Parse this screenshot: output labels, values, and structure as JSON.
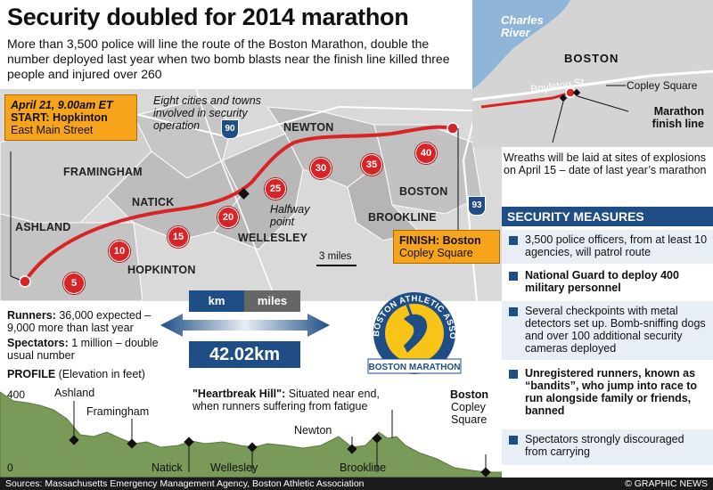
{
  "title": "Security doubled for 2014 marathon",
  "intro": "More than 3,500 police will line the route of the Boston Marathon, double the number deployed last year when two bomb blasts near the finish line killed three people and injured over 260",
  "start_callout": {
    "date": "April 21, 9.00am ET",
    "label": "START: Hopkinton",
    "sub": "East Main Street"
  },
  "finish_callout": {
    "label": "FINISH: Boston",
    "sub": "Copley Square"
  },
  "eight_cities_note": "Eight cities and towns involved in security operation",
  "halfway_note": "Halfway point",
  "scale_label": "3 miles",
  "towns": [
    "ASHLAND",
    "FRAMINGHAM",
    "NATICK",
    "HOPKINTON",
    "NEWTON",
    "WELLESLEY",
    "BOSTON",
    "BROOKLINE"
  ],
  "highways": [
    "90",
    "93"
  ],
  "mile_markers": [
    "5",
    "10",
    "15",
    "20",
    "25",
    "30",
    "35",
    "40"
  ],
  "inset": {
    "river": "Charles River",
    "city": "BOSTON",
    "street": "Boylston St.",
    "square": "Copley Square",
    "finish": "Marathon finish line",
    "wreaths": "Wreaths will be laid at sites of explosions on April 15 – date of last year’s marathon"
  },
  "distance": {
    "km_label": "km",
    "miles_label": "miles",
    "value": "42.02km"
  },
  "runners": {
    "label": "Runners:",
    "text": " 36,000 expected – 9,000 more than last year"
  },
  "spectators": {
    "label": "Spectators:",
    "text": " 1 million – double usual number"
  },
  "logo": {
    "ring": "BOSTON ATHLETIC ASSOCIATION",
    "banner": "BOSTON MARATHON"
  },
  "profile": {
    "label": "PROFILE",
    "unit": " (Elevation in feet)",
    "y_top": "400",
    "y_bottom": "0",
    "places": [
      "Ashland",
      "Framingham",
      "Natick",
      "Wellesley",
      "Newton",
      "Brookline",
      "Boston",
      "Copley",
      "Square"
    ],
    "heartbreak_title": "\"Heartbreak Hill\":",
    "heartbreak_text": " Situated near end, when runners suffering from fatigue"
  },
  "security": {
    "title": "SECURITY MEASURES",
    "items": [
      "3,500 police officers, from at least 10 agencies, will patrol route",
      "National Guard to deploy 400 military personnel",
      "Several checkpoints with metal detectors set up. Bomb-sniffing dogs and over 100 additional security cameras deployed",
      "Unregistered runners, known as “bandits”, who jump into race to run alongside family or friends, banned",
      "Spectators strongly discouraged from carrying"
    ]
  },
  "sources": "Sources: Massachusetts Emergency Management Agency, Boston Athletic Association",
  "credit": "© GRAPHIC NEWS",
  "colors": {
    "route": "#d92427",
    "callout": "#f7a41d",
    "navy": "#1f4e86",
    "profile_fill": "#7a9a5a"
  }
}
